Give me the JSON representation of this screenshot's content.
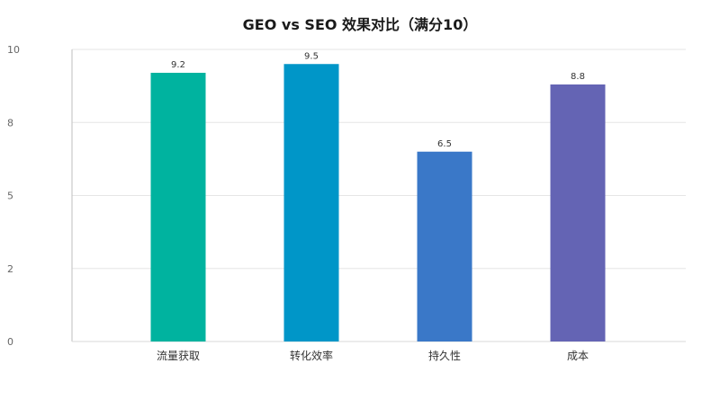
{
  "chart_data": {
    "type": "bar",
    "title": "GEO vs SEO 效果对比（满分10）",
    "categories": [
      "流量获取",
      "转化效率",
      "持久性",
      "成本"
    ],
    "values": [
      9.2,
      9.5,
      6.5,
      8.8
    ],
    "value_labels": [
      "9.2",
      "9.5",
      "6.5",
      "8.8"
    ],
    "colors": [
      "#00b39f",
      "#0096c8",
      "#3a78c8",
      "#6464b4"
    ],
    "ylim": [
      0,
      10
    ],
    "y_tick_labels": [
      "0",
      "2",
      "5",
      "8",
      "10"
    ],
    "y_tick_values": [
      0,
      2.5,
      5,
      7.5,
      10
    ],
    "grid": true,
    "legend": "none",
    "xlabel": "",
    "ylabel": ""
  }
}
